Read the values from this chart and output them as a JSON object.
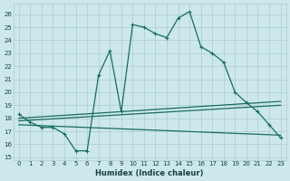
{
  "xlabel": "Humidex (Indice chaleur)",
  "background_color": "#cce8ec",
  "grid_color": "#aacccc",
  "line_color": "#1a6b60",
  "xlim": [
    -0.5,
    23.5
  ],
  "ylim": [
    14.8,
    26.8
  ],
  "yticks": [
    15,
    16,
    17,
    18,
    19,
    20,
    21,
    22,
    23,
    24,
    25,
    26
  ],
  "xticks": [
    0,
    1,
    2,
    3,
    4,
    5,
    6,
    7,
    8,
    9,
    10,
    11,
    12,
    13,
    14,
    15,
    16,
    17,
    18,
    19,
    20,
    21,
    22,
    23
  ],
  "main_curve": {
    "x": [
      0,
      1,
      2,
      3,
      4,
      5,
      6,
      7,
      8,
      9,
      10,
      11,
      12,
      13,
      14,
      15,
      16,
      17,
      18,
      19,
      20,
      21,
      22,
      23
    ],
    "y": [
      18.3,
      17.7,
      17.3,
      17.3,
      16.8,
      15.5,
      15.5,
      21.3,
      23.2,
      18.5,
      25.2,
      25.0,
      24.5,
      24.2,
      25.7,
      26.2,
      23.5,
      23.0,
      22.3,
      20.0,
      19.2,
      18.5,
      17.5,
      16.5
    ]
  },
  "line1": {
    "x": [
      0,
      23
    ],
    "y": [
      17.5,
      16.7
    ]
  },
  "line2": {
    "x": [
      0,
      23
    ],
    "y": [
      17.8,
      19.0
    ]
  },
  "line3": {
    "x": [
      0,
      23
    ],
    "y": [
      18.0,
      19.3
    ]
  }
}
